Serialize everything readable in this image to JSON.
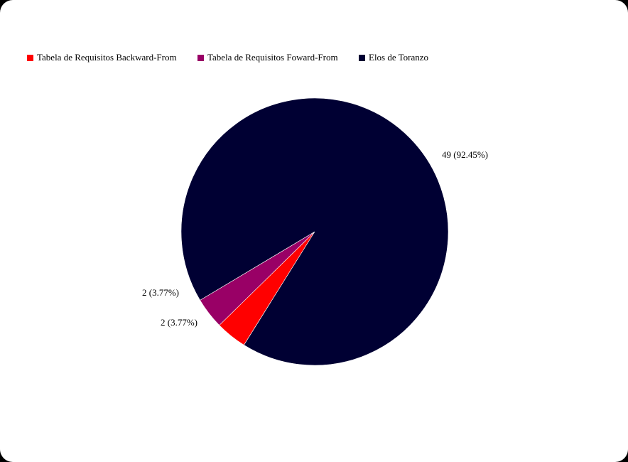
{
  "chart_data": {
    "type": "pie",
    "title": "",
    "categories": [
      "Tabela de Requisitos Backward-From",
      "Tabela de Requisitos Foward-From",
      "Elos de Toranzo"
    ],
    "values": [
      2,
      2,
      49
    ],
    "percentages": [
      3.77,
      3.77,
      92.45
    ],
    "data_labels": [
      "2 (3.77%)",
      "2 (3.77%)",
      "49 (92.45%)"
    ],
    "colors": [
      "#ff0000",
      "#990066",
      "#000033"
    ],
    "legend_position": "top-left"
  }
}
